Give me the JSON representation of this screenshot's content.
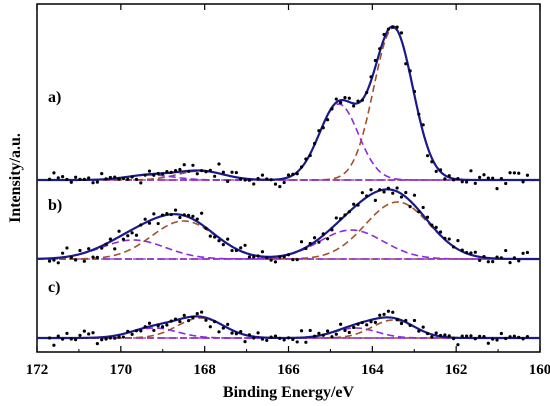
{
  "chart_data": {
    "type": "line",
    "xlabel": "Binding Energy/eV",
    "ylabel": "Intensity/a.u.",
    "xlim": [
      172,
      160
    ],
    "x_reversed": true,
    "x_ticks": [
      172,
      170,
      168,
      166,
      164,
      162,
      160
    ],
    "grid": false,
    "legend": "none",
    "y_ticks_shown": false,
    "colors": {
      "envelope": "#1a1a8c",
      "doublet_high": "#a0522d",
      "doublet_low": "#8a2be2",
      "baseline": "#8a2be2",
      "points": "#000000"
    },
    "panels": [
      {
        "label": "a)",
        "baseline": 0,
        "peaks": [
          {
            "type": "doublet_high",
            "center": 163.5,
            "fwhm": 1.1,
            "height": 152
          },
          {
            "type": "doublet_low",
            "center": 164.8,
            "fwhm": 1.1,
            "height": 76
          },
          {
            "type": "doublet_high",
            "center": 168.1,
            "fwhm": 1.3,
            "height": 9
          },
          {
            "type": "doublet_low",
            "center": 169.3,
            "fwhm": 1.3,
            "height": 5
          }
        ],
        "scatter_noise": 7
      },
      {
        "label": "b)",
        "baseline": 0,
        "peaks": [
          {
            "type": "doublet_high",
            "center": 163.4,
            "fwhm": 1.8,
            "height": 57
          },
          {
            "type": "doublet_low",
            "center": 164.5,
            "fwhm": 1.8,
            "height": 29
          },
          {
            "type": "doublet_high",
            "center": 168.5,
            "fwhm": 1.8,
            "height": 38
          },
          {
            "type": "doublet_low",
            "center": 169.7,
            "fwhm": 1.8,
            "height": 19
          }
        ],
        "scatter_noise": 7
      },
      {
        "label": "c)",
        "baseline": 0,
        "peaks": [
          {
            "type": "doublet_high",
            "center": 163.5,
            "fwhm": 1.2,
            "height": 18
          },
          {
            "type": "doublet_low",
            "center": 164.4,
            "fwhm": 1.2,
            "height": 10
          },
          {
            "type": "doublet_high",
            "center": 168.1,
            "fwhm": 1.3,
            "height": 20
          },
          {
            "type": "doublet_low",
            "center": 169.2,
            "fwhm": 1.3,
            "height": 10
          }
        ],
        "scatter_noise": 5
      }
    ]
  }
}
